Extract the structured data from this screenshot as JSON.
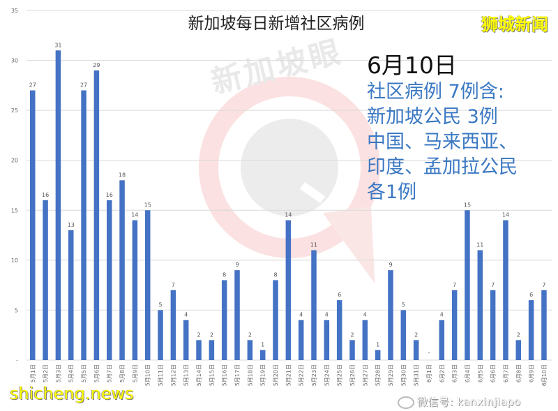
{
  "chart_data": {
    "type": "bar",
    "title": "新加坡每日新增社区病例",
    "xlabel": "",
    "ylabel": "",
    "ylim": [
      0,
      35
    ],
    "yticks": [
      0,
      5,
      10,
      15,
      20,
      25,
      30,
      35
    ],
    "ytick_labels": [
      "-",
      "5",
      "10",
      "15",
      "20",
      "25",
      "30",
      "35"
    ],
    "grid": true,
    "legend": null,
    "bar_color": "#4472c4",
    "categories": [
      "5月1日",
      "5月2日",
      "5月3日",
      "5月4日",
      "5月5日",
      "5月6日",
      "5月7日",
      "5月8日",
      "5月9日",
      "5月10日",
      "5月11日",
      "5月12日",
      "5月13日",
      "5月14日",
      "5月15日",
      "5月16日",
      "5月17日",
      "5月18日",
      "5月19日",
      "5月20日",
      "5月21日",
      "5月22日",
      "5月23日",
      "5月24日",
      "5月25日",
      "5月26日",
      "5月27日",
      "5月28日",
      "5月29日",
      "5月30日",
      "5月31日",
      "6月1日",
      "6月2日",
      "6月3日",
      "6月4日",
      "6月5日",
      "6月6日",
      "6月7日",
      "6月8日",
      "6月9日",
      "6月10日"
    ],
    "values": [
      27,
      16,
      31,
      13,
      27,
      29,
      16,
      18,
      14,
      15,
      5,
      7,
      4,
      2,
      2,
      8,
      9,
      2,
      1,
      8,
      14,
      4,
      11,
      4,
      6,
      2,
      4,
      1,
      9,
      5,
      2,
      0,
      4,
      7,
      15,
      11,
      7,
      14,
      2,
      6,
      7
    ],
    "value_labels": [
      "27",
      "16",
      "31",
      "13",
      "27",
      "29",
      "16",
      "18",
      "14",
      "15",
      "5",
      "7",
      "4",
      "2",
      "2",
      "8",
      "9",
      "2",
      "1",
      "8",
      "14",
      "4",
      "11",
      "4",
      "6",
      "2",
      "4",
      "1",
      "9",
      "5",
      "2",
      "-",
      "4",
      "7",
      "15",
      "11",
      "7",
      "14",
      "2",
      "6",
      "7"
    ]
  },
  "annotation": {
    "date": "6月10日",
    "lines": [
      "社区病例 7例含:",
      "新加坡公民 3例",
      "中国、马来西亚、",
      "印度、孟加拉公民",
      "各1例"
    ]
  },
  "watermarks": {
    "center_text": "新加坡眼",
    "top_right": "狮城新闻",
    "bottom_left": "shicheng.news",
    "bottom_right": "微信号: kanxinjiapo"
  },
  "colors": {
    "bar": "#4472c4",
    "annotation_text": "#3a78c3",
    "brand_yellow": "#ffff00",
    "grid": "#d9d9d9"
  }
}
